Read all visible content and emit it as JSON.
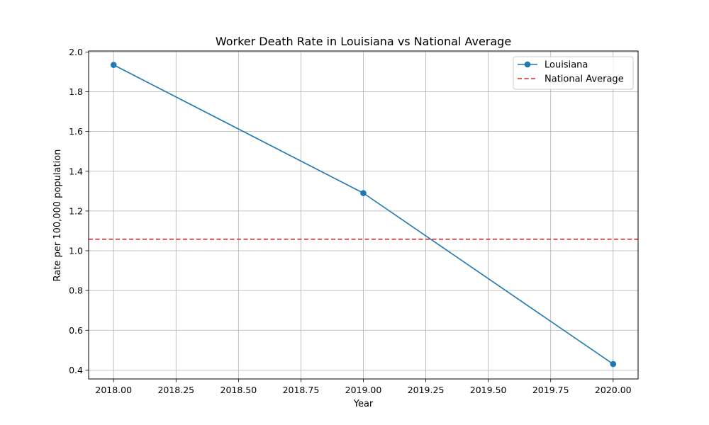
{
  "chart_data": {
    "type": "line",
    "title": "Worker Death Rate in Louisiana vs National Average",
    "xlabel": "Year",
    "ylabel": "Rate per 100,000 population",
    "xlim": [
      2017.9,
      2020.1
    ],
    "ylim": [
      0.355,
      2.005
    ],
    "x_ticks": [
      2018.0,
      2018.25,
      2018.5,
      2018.75,
      2019.0,
      2019.25,
      2019.5,
      2019.75,
      2020.0
    ],
    "x_tick_labels": [
      "2018.00",
      "2018.25",
      "2018.50",
      "2018.75",
      "2019.00",
      "2019.25",
      "2019.50",
      "2019.75",
      "2020.00"
    ],
    "y_ticks": [
      0.4,
      0.6,
      0.8,
      1.0,
      1.2,
      1.4,
      1.6,
      1.8,
      2.0
    ],
    "y_tick_labels": [
      "0.4",
      "0.6",
      "0.8",
      "1.0",
      "1.2",
      "1.4",
      "1.6",
      "1.8",
      "2.0"
    ],
    "grid": true,
    "legend_position": "top-right",
    "series": [
      {
        "name": "Louisiana",
        "style": "solid-line-with-circle-markers",
        "color": "#1f77b4",
        "x": [
          2018,
          2019,
          2020
        ],
        "y": [
          1.935,
          1.29,
          0.43
        ]
      },
      {
        "name": "National Average",
        "style": "dashed-horizontal-line",
        "color": "#d62728",
        "y": 1.058
      }
    ]
  }
}
